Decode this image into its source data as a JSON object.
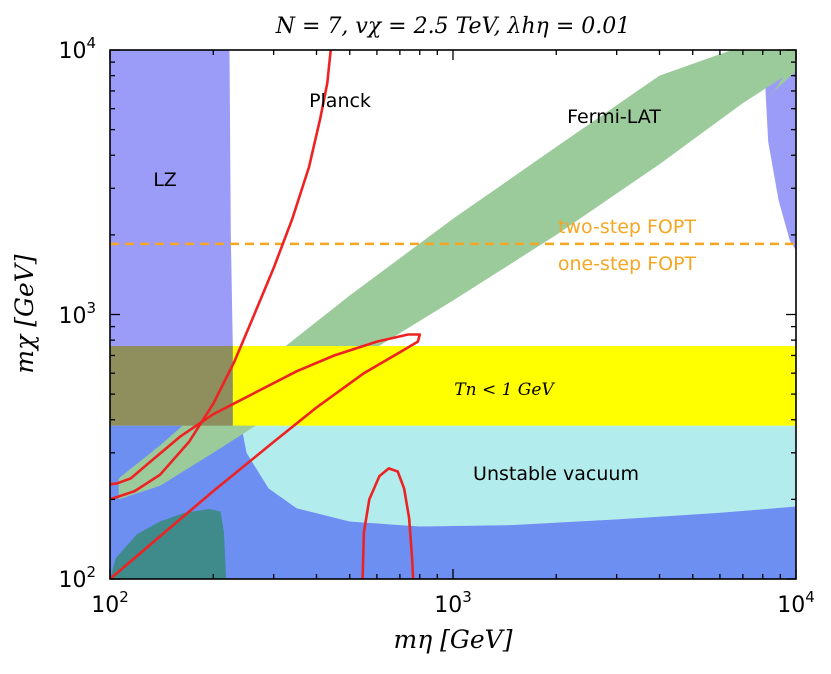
{
  "chart_data": {
    "type": "area",
    "title": "N = 7,  vχ = 2.5 TeV,  λhη = 0.01",
    "xlabel": "mη [GeV]",
    "ylabel": "mχ [GeV]",
    "xscale": "log",
    "yscale": "log",
    "xlim": [
      100,
      10000
    ],
    "ylim": [
      100,
      10000
    ],
    "xticks": [
      {
        "value": 100,
        "base": "10",
        "exp": "2"
      },
      {
        "value": 1000,
        "base": "10",
        "exp": "3"
      },
      {
        "value": 10000,
        "base": "10",
        "exp": "4"
      }
    ],
    "yticks": [
      {
        "value": 100,
        "base": "10",
        "exp": "2"
      },
      {
        "value": 1000,
        "base": "10",
        "exp": "3"
      },
      {
        "value": 10000,
        "base": "10",
        "exp": "4"
      }
    ],
    "colors": {
      "lz": "#9b9bf8",
      "unstable": "#b3ecec",
      "overlap_blue": "#6d8ff2",
      "fermi": "#9bcb9b",
      "dark_teal": "#3f8a8a",
      "tn_band": "#ffff00",
      "tn_lz_overlap": "#8f8f5e",
      "planck": "#ee2222",
      "fopt": "#f5a623"
    },
    "fopt_boundary": {
      "y": 1850,
      "label_above": "two-step FOPT",
      "label_below": "one-step FOPT"
    },
    "tn_band": {
      "y_min": 380,
      "y_max": 760,
      "label": "Tn < 1 GeV"
    },
    "regions": [
      {
        "name": "LZ",
        "label": "LZ",
        "label_at": [
          155,
          2700
        ]
      },
      {
        "name": "Unstable vacuum",
        "label": "Unstable vacuum",
        "label_at": [
          2000,
          280
        ]
      },
      {
        "name": "Fermi-LAT",
        "label": "Fermi-LAT",
        "label_at": [
          3000,
          5300
        ]
      },
      {
        "name": "Planck",
        "label": "Planck",
        "label_at": [
          400,
          6800
        ]
      }
    ],
    "series": [
      {
        "name": "Fermi-LAT band",
        "polygon": [
          [
            106,
            200
          ],
          [
            140,
            225
          ],
          [
            200,
            300
          ],
          [
            300,
            420
          ],
          [
            500,
            650
          ],
          [
            1000,
            1130
          ],
          [
            2000,
            2000
          ],
          [
            4000,
            3700
          ],
          [
            7000,
            6300
          ],
          [
            10000,
            8500
          ],
          [
            10000,
            10000
          ],
          [
            6500,
            10000
          ],
          [
            4000,
            8000
          ],
          [
            2000,
            4300
          ],
          [
            1000,
            2300
          ],
          [
            500,
            1180
          ],
          [
            300,
            700
          ],
          [
            200,
            480
          ],
          [
            140,
            320
          ],
          [
            106,
            240
          ]
        ]
      },
      {
        "name": "Fermi-LAT corner",
        "polygon": [
          [
            8000,
            6400
          ],
          [
            10000,
            8300
          ],
          [
            10000,
            9400
          ],
          [
            8700,
            7100
          ]
        ]
      },
      {
        "name": "Planck relic line",
        "points": [
          [
            100,
            200
          ],
          [
            118,
            215
          ],
          [
            140,
            248
          ],
          [
            170,
            330
          ],
          [
            200,
            460
          ],
          [
            230,
            660
          ],
          [
            260,
            960
          ],
          [
            300,
            1500
          ],
          [
            340,
            2300
          ],
          [
            380,
            3600
          ],
          [
            410,
            5500
          ],
          [
            430,
            7500
          ],
          [
            440,
            10000
          ]
        ]
      },
      {
        "name": "Planck resonance loop",
        "points": [
          [
            100,
            100
          ],
          [
            140,
            145
          ],
          [
            200,
            215
          ],
          [
            300,
            330
          ],
          [
            400,
            445
          ],
          [
            550,
            600
          ],
          [
            700,
            720
          ],
          [
            790,
            790
          ],
          [
            800,
            840
          ],
          [
            740,
            840
          ],
          [
            600,
            790
          ],
          [
            450,
            700
          ],
          [
            350,
            610
          ],
          [
            260,
            500
          ],
          [
            200,
            420
          ],
          [
            160,
            345
          ],
          [
            130,
            275
          ],
          [
            115,
            240
          ],
          [
            105,
            230
          ],
          [
            100,
            228
          ]
        ]
      },
      {
        "name": "Planck low-mass dome",
        "points": [
          [
            545,
            100
          ],
          [
            550,
            150
          ],
          [
            570,
            200
          ],
          [
            610,
            245
          ],
          [
            650,
            262
          ],
          [
            690,
            255
          ],
          [
            720,
            220
          ],
          [
            745,
            170
          ],
          [
            760,
            120
          ],
          [
            765,
            100
          ]
        ]
      }
    ]
  }
}
